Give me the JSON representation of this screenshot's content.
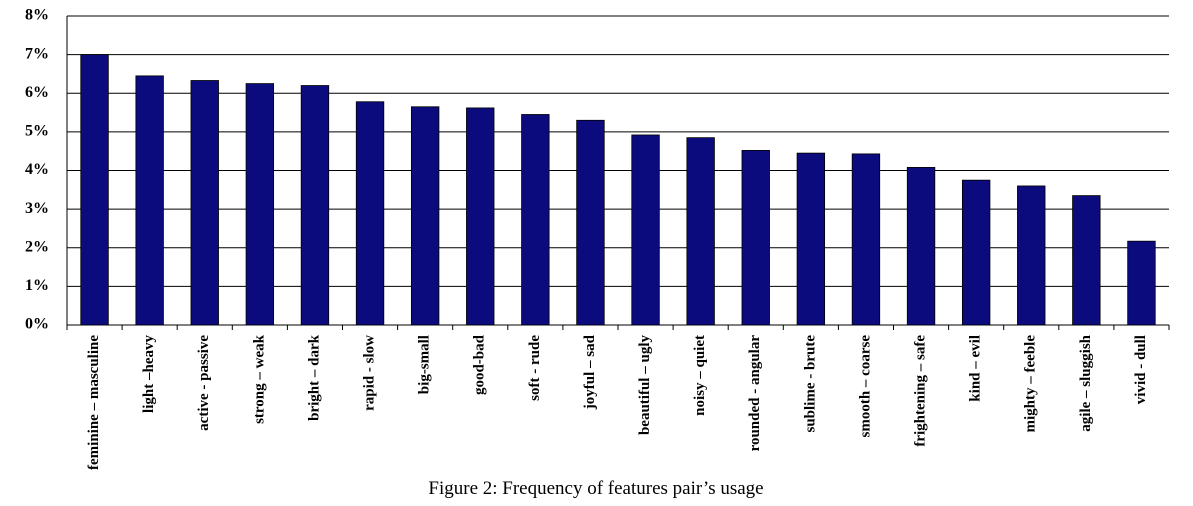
{
  "chart_data": {
    "type": "bar",
    "caption": "Figure 2: Frequency of features pair’s usage",
    "categories": [
      "feminine – masculine",
      "light –heavy",
      "active - passive",
      "strong – weak",
      "bright – dark",
      "rapid - slow",
      "big-small",
      "good-bad",
      "soft - rude",
      "joyful – sad",
      "beautiful – ugly",
      "noisy – quiet",
      "rounded - angular",
      "sublime - brute",
      "smooth – coarse",
      "frightening – safe",
      "kind – evil",
      "mighty – feeble",
      "agile – sluggish",
      "vivid - dull"
    ],
    "values": [
      7.0,
      6.45,
      6.33,
      6.25,
      6.2,
      5.78,
      5.65,
      5.62,
      5.45,
      5.3,
      4.92,
      4.85,
      4.52,
      4.45,
      4.43,
      4.08,
      3.75,
      3.6,
      3.35,
      2.17
    ],
    "color": "#0b0b7d",
    "ylim": [
      0,
      8
    ],
    "yticks": [
      {
        "value": 0,
        "label": "0%"
      },
      {
        "value": 1,
        "label": "1%"
      },
      {
        "value": 2,
        "label": "2%"
      },
      {
        "value": 3,
        "label": "3%"
      },
      {
        "value": 4,
        "label": "4%"
      },
      {
        "value": 5,
        "label": "5%"
      },
      {
        "value": 6,
        "label": "6%"
      },
      {
        "value": 7,
        "label": "7%"
      },
      {
        "value": 8,
        "label": "8%"
      }
    ],
    "grid": true
  }
}
